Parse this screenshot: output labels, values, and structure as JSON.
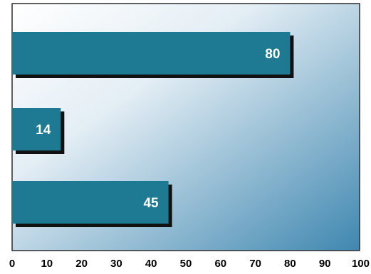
{
  "chart_data": {
    "type": "bar",
    "orientation": "horizontal",
    "categories": [
      "",
      "",
      ""
    ],
    "values": [
      80,
      14,
      45
    ],
    "xlim": [
      0,
      100
    ],
    "xticks": [
      0,
      10,
      20,
      30,
      40,
      50,
      60,
      70,
      80,
      90,
      100
    ],
    "tick_labels": [
      "0",
      "10",
      "20",
      "30",
      "40",
      "50",
      "60",
      "70",
      "80",
      "90",
      "100"
    ],
    "data_labels": [
      "80",
      "14",
      "45"
    ],
    "title": "",
    "xlabel": "",
    "ylabel": "",
    "grid": false,
    "legend": "none",
    "colors": {
      "bar": "#1e7a92",
      "bar_shadow": "#111111",
      "label": "#ffffff",
      "background_light": "#ffffff",
      "background_dark": "#3f87b0",
      "frame": "#2c2c2c",
      "tick_text": "#000000"
    }
  }
}
